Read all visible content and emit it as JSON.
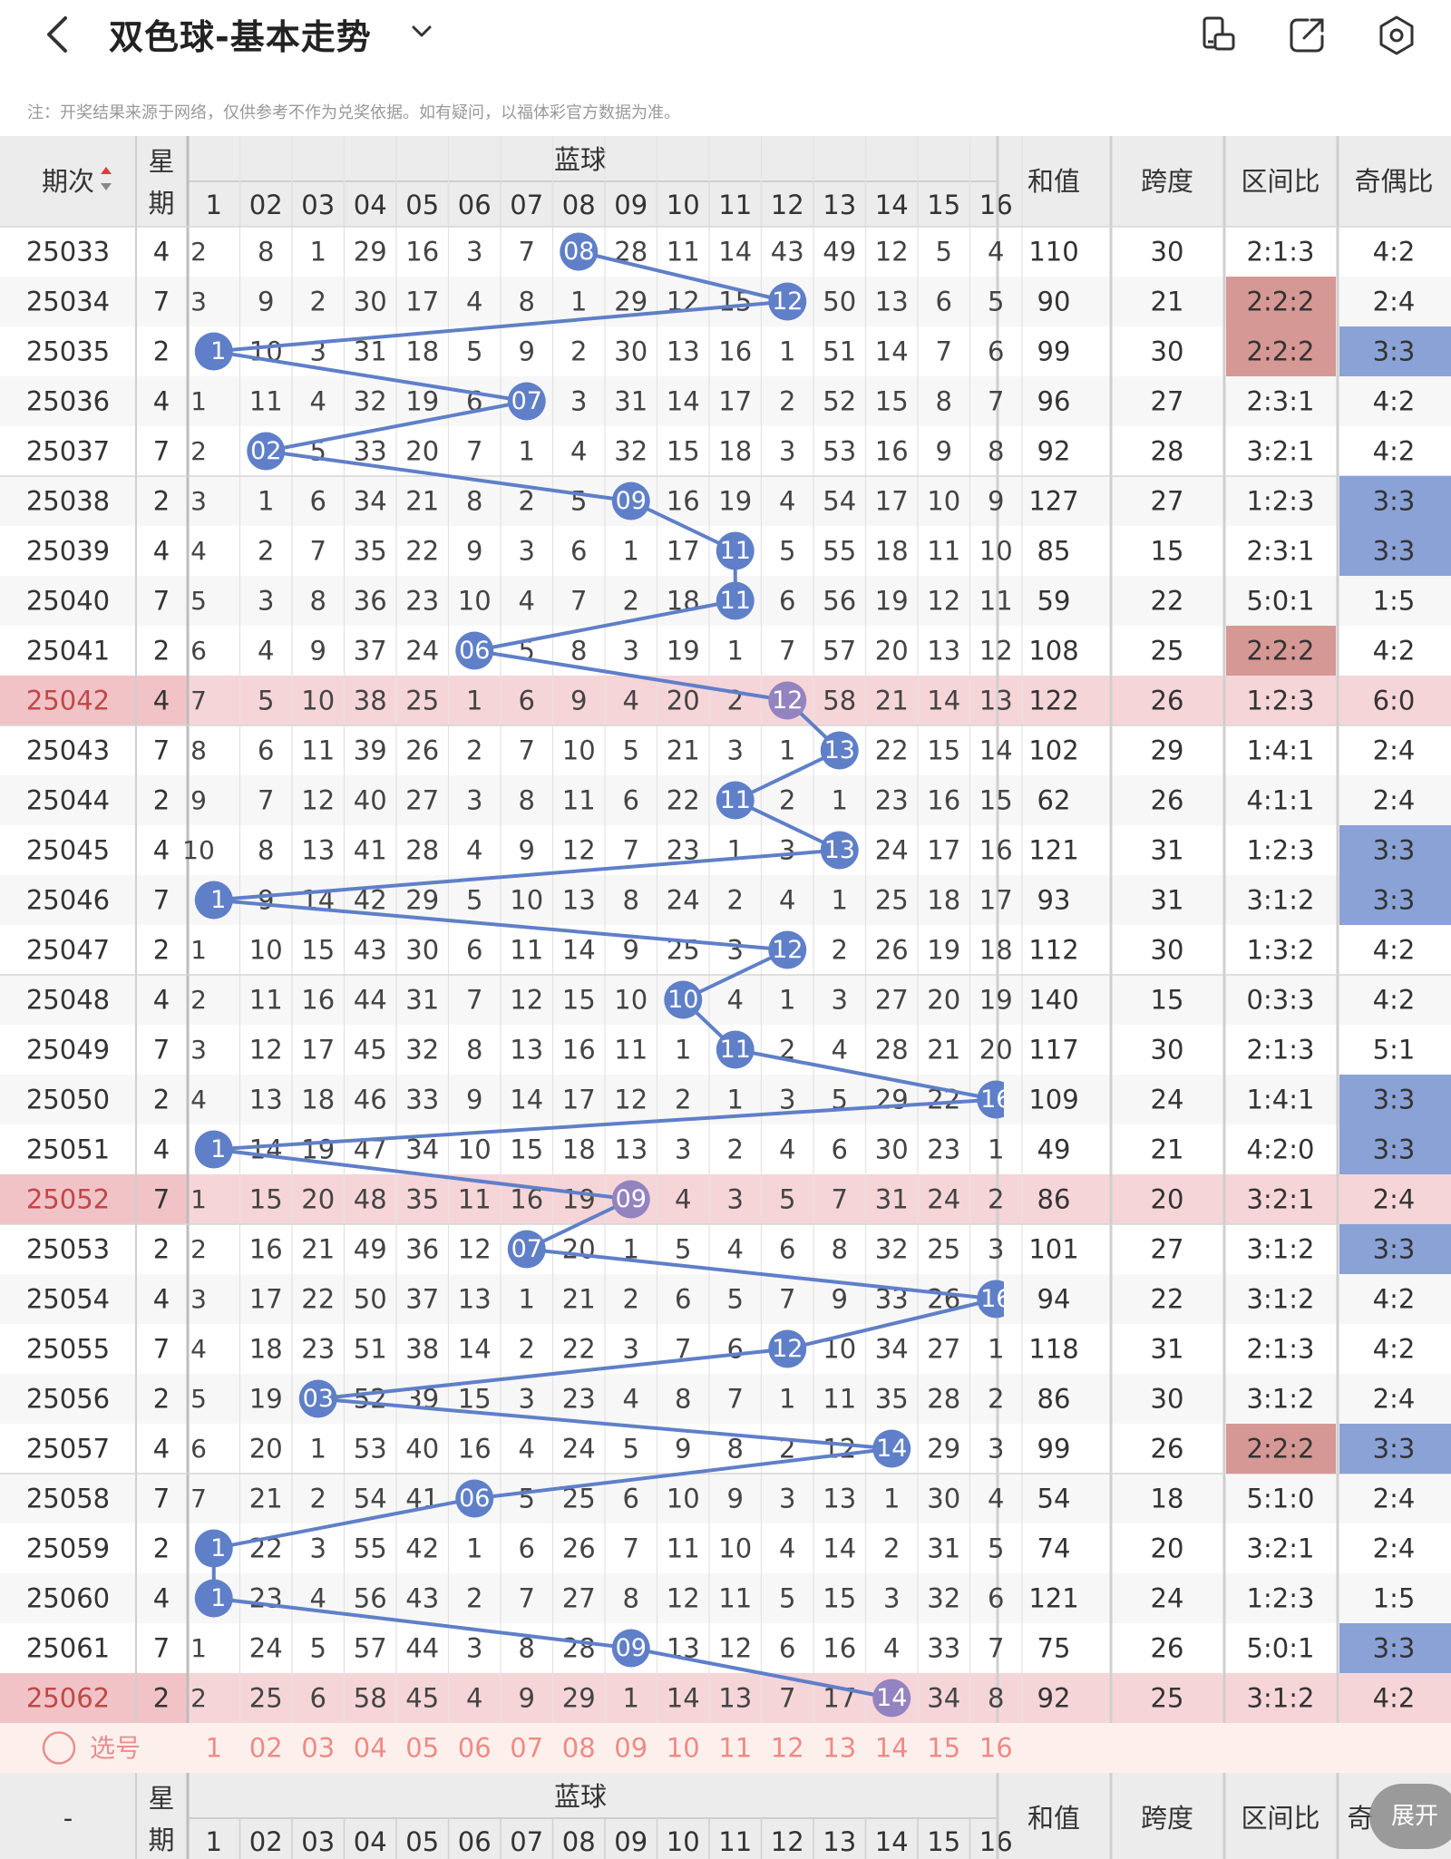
{
  "header": {
    "title": "双色球-基本走势",
    "icons": [
      "back-arrow-icon",
      "chevron-down-icon",
      "phone-rotate-icon",
      "share-icon",
      "settings-icon"
    ]
  },
  "notice": "注：开奖结果来源于网络，仅供参考不作为兑奖依据。如有疑问，以福体彩官方数据为准。",
  "table": {
    "col_period": "期次",
    "col_week": "星期",
    "col_blue": "蓝球",
    "col_sum": "和值",
    "col_span": "跨度",
    "col_zone": "区间比",
    "col_oddeven": "奇偶比",
    "ball_headers": [
      "1",
      "02",
      "03",
      "04",
      "05",
      "06",
      "07",
      "08",
      "09",
      "10",
      "11",
      "12",
      "13",
      "14",
      "15",
      "16"
    ],
    "rows": [
      {
        "p": "25033",
        "w": "4",
        "c0": "2",
        "b": 8,
        "miss": [
          "8",
          "1",
          "29",
          "16",
          "3",
          "7",
          "",
          "28",
          "11",
          "14",
          "43",
          "49",
          "12",
          "5",
          "4"
        ],
        "sum": "110",
        "span": "30",
        "zone": "2:1:3",
        "oe": "4:2",
        "zh": false,
        "oh": false,
        "hl": false
      },
      {
        "p": "25034",
        "w": "7",
        "c0": "3",
        "b": 12,
        "miss": [
          "9",
          "2",
          "30",
          "17",
          "4",
          "8",
          "1",
          "29",
          "12",
          "15",
          "",
          "50",
          "13",
          "6",
          "5"
        ],
        "sum": "90",
        "span": "21",
        "zone": "2:2:2",
        "oe": "2:4",
        "zh": true,
        "oh": false,
        "hl": false
      },
      {
        "p": "25035",
        "w": "2",
        "c0": "",
        "b": 1,
        "miss": [
          "10",
          "3",
          "31",
          "18",
          "5",
          "9",
          "2",
          "30",
          "13",
          "16",
          "1",
          "51",
          "14",
          "7",
          "6"
        ],
        "sum": "99",
        "span": "30",
        "zone": "2:2:2",
        "oe": "3:3",
        "zh": true,
        "oh": true,
        "hl": false
      },
      {
        "p": "25036",
        "w": "4",
        "c0": "1",
        "b": 7,
        "miss": [
          "11",
          "4",
          "32",
          "19",
          "6",
          "",
          "3",
          "31",
          "14",
          "17",
          "2",
          "52",
          "15",
          "8",
          "7"
        ],
        "sum": "96",
        "span": "27",
        "zone": "2:3:1",
        "oe": "4:2",
        "zh": false,
        "oh": false,
        "hl": false
      },
      {
        "p": "25037",
        "w": "7",
        "c0": "2",
        "b": 2,
        "miss": [
          "",
          "5",
          "33",
          "20",
          "7",
          "1",
          "4",
          "32",
          "15",
          "18",
          "3",
          "53",
          "16",
          "9",
          "8"
        ],
        "sum": "92",
        "span": "28",
        "zone": "3:2:1",
        "oe": "4:2",
        "zh": false,
        "oh": false,
        "hl": false
      },
      {
        "p": "25038",
        "w": "2",
        "c0": "3",
        "b": 9,
        "miss": [
          "1",
          "6",
          "34",
          "21",
          "8",
          "2",
          "5",
          "",
          "16",
          "19",
          "4",
          "54",
          "17",
          "10",
          "9"
        ],
        "sum": "127",
        "span": "27",
        "zone": "1:2:3",
        "oe": "3:3",
        "zh": false,
        "oh": true,
        "hl": false
      },
      {
        "p": "25039",
        "w": "4",
        "c0": "4",
        "b": 11,
        "miss": [
          "2",
          "7",
          "35",
          "22",
          "9",
          "3",
          "6",
          "1",
          "17",
          "",
          "5",
          "55",
          "18",
          "11",
          "10"
        ],
        "sum": "85",
        "span": "15",
        "zone": "2:3:1",
        "oe": "3:3",
        "zh": false,
        "oh": true,
        "hl": false
      },
      {
        "p": "25040",
        "w": "7",
        "c0": "5",
        "b": 11,
        "miss": [
          "3",
          "8",
          "36",
          "23",
          "10",
          "4",
          "7",
          "2",
          "18",
          "",
          "6",
          "56",
          "19",
          "12",
          "11"
        ],
        "sum": "59",
        "span": "22",
        "zone": "5:0:1",
        "oe": "1:5",
        "zh": false,
        "oh": false,
        "hl": false
      },
      {
        "p": "25041",
        "w": "2",
        "c0": "6",
        "b": 6,
        "miss": [
          "4",
          "9",
          "37",
          "24",
          "",
          "5",
          "8",
          "3",
          "19",
          "1",
          "7",
          "57",
          "20",
          "13",
          "12"
        ],
        "sum": "108",
        "span": "25",
        "zone": "2:2:2",
        "oe": "4:2",
        "zh": true,
        "oh": false,
        "hl": false
      },
      {
        "p": "25042",
        "w": "4",
        "c0": "7",
        "b": 12,
        "miss": [
          "5",
          "10",
          "38",
          "25",
          "1",
          "6",
          "9",
          "4",
          "20",
          "2",
          "",
          "58",
          "21",
          "14",
          "13"
        ],
        "sum": "122",
        "span": "26",
        "zone": "1:2:3",
        "oe": "6:0",
        "zh": false,
        "oh": false,
        "hl": true
      },
      {
        "p": "25043",
        "w": "7",
        "c0": "8",
        "b": 13,
        "miss": [
          "6",
          "11",
          "39",
          "26",
          "2",
          "7",
          "10",
          "5",
          "21",
          "3",
          "1",
          "",
          "22",
          "15",
          "14"
        ],
        "sum": "102",
        "span": "29",
        "zone": "1:4:1",
        "oe": "2:4",
        "zh": false,
        "oh": false,
        "hl": false
      },
      {
        "p": "25044",
        "w": "2",
        "c0": "9",
        "b": 11,
        "miss": [
          "7",
          "12",
          "40",
          "27",
          "3",
          "8",
          "11",
          "6",
          "22",
          "",
          "2",
          "1",
          "23",
          "16",
          "15"
        ],
        "sum": "62",
        "span": "26",
        "zone": "4:1:1",
        "oe": "2:4",
        "zh": false,
        "oh": false,
        "hl": false
      },
      {
        "p": "25045",
        "w": "4",
        "c0": "10",
        "b": 13,
        "miss": [
          "8",
          "13",
          "41",
          "28",
          "4",
          "9",
          "12",
          "7",
          "23",
          "1",
          "3",
          "",
          "24",
          "17",
          "16"
        ],
        "sum": "121",
        "span": "31",
        "zone": "1:2:3",
        "oe": "3:3",
        "zh": false,
        "oh": true,
        "hl": false
      },
      {
        "p": "25046",
        "w": "7",
        "c0": "",
        "b": 1,
        "miss": [
          "9",
          "14",
          "42",
          "29",
          "5",
          "10",
          "13",
          "8",
          "24",
          "2",
          "4",
          "1",
          "25",
          "18",
          "17"
        ],
        "sum": "93",
        "span": "31",
        "zone": "3:1:2",
        "oe": "3:3",
        "zh": false,
        "oh": true,
        "hl": false
      },
      {
        "p": "25047",
        "w": "2",
        "c0": "1",
        "b": 12,
        "miss": [
          "10",
          "15",
          "43",
          "30",
          "6",
          "11",
          "14",
          "9",
          "25",
          "3",
          "",
          "2",
          "26",
          "19",
          "18"
        ],
        "sum": "112",
        "span": "30",
        "zone": "1:3:2",
        "oe": "4:2",
        "zh": false,
        "oh": false,
        "hl": false
      },
      {
        "p": "25048",
        "w": "4",
        "c0": "2",
        "b": 10,
        "miss": [
          "11",
          "16",
          "44",
          "31",
          "7",
          "12",
          "15",
          "10",
          "",
          "4",
          "1",
          "3",
          "27",
          "20",
          "19"
        ],
        "sum": "140",
        "span": "15",
        "zone": "0:3:3",
        "oe": "4:2",
        "zh": false,
        "oh": false,
        "hl": false
      },
      {
        "p": "25049",
        "w": "7",
        "c0": "3",
        "b": 11,
        "miss": [
          "12",
          "17",
          "45",
          "32",
          "8",
          "13",
          "16",
          "11",
          "1",
          "",
          "2",
          "4",
          "28",
          "21",
          "20"
        ],
        "sum": "117",
        "span": "30",
        "zone": "2:1:3",
        "oe": "5:1",
        "zh": false,
        "oh": false,
        "hl": false
      },
      {
        "p": "25050",
        "w": "2",
        "c0": "4",
        "b": 16,
        "miss": [
          "13",
          "18",
          "46",
          "33",
          "9",
          "14",
          "17",
          "12",
          "2",
          "1",
          "3",
          "5",
          "29",
          "22",
          ""
        ],
        "sum": "109",
        "span": "24",
        "zone": "1:4:1",
        "oe": "3:3",
        "zh": false,
        "oh": true,
        "hl": false
      },
      {
        "p": "25051",
        "w": "4",
        "c0": "",
        "b": 1,
        "miss": [
          "14",
          "19",
          "47",
          "34",
          "10",
          "15",
          "18",
          "13",
          "3",
          "2",
          "4",
          "6",
          "30",
          "23",
          "1"
        ],
        "sum": "49",
        "span": "21",
        "zone": "4:2:0",
        "oe": "3:3",
        "zh": false,
        "oh": true,
        "hl": false
      },
      {
        "p": "25052",
        "w": "7",
        "c0": "1",
        "b": 9,
        "miss": [
          "15",
          "20",
          "48",
          "35",
          "11",
          "16",
          "19",
          "",
          "4",
          "3",
          "5",
          "7",
          "31",
          "24",
          "2"
        ],
        "sum": "86",
        "span": "20",
        "zone": "3:2:1",
        "oe": "2:4",
        "zh": false,
        "oh": false,
        "hl": true
      },
      {
        "p": "25053",
        "w": "2",
        "c0": "2",
        "b": 7,
        "miss": [
          "16",
          "21",
          "49",
          "36",
          "12",
          "",
          "20",
          "1",
          "5",
          "4",
          "6",
          "8",
          "32",
          "25",
          "3"
        ],
        "sum": "101",
        "span": "27",
        "zone": "3:1:2",
        "oe": "3:3",
        "zh": false,
        "oh": true,
        "hl": false
      },
      {
        "p": "25054",
        "w": "4",
        "c0": "3",
        "b": 16,
        "miss": [
          "17",
          "22",
          "50",
          "37",
          "13",
          "1",
          "21",
          "2",
          "6",
          "5",
          "7",
          "9",
          "33",
          "26",
          ""
        ],
        "sum": "94",
        "span": "22",
        "zone": "3:1:2",
        "oe": "4:2",
        "zh": false,
        "oh": false,
        "hl": false
      },
      {
        "p": "25055",
        "w": "7",
        "c0": "4",
        "b": 12,
        "miss": [
          "18",
          "23",
          "51",
          "38",
          "14",
          "2",
          "22",
          "3",
          "7",
          "6",
          "",
          "10",
          "34",
          "27",
          "1"
        ],
        "sum": "118",
        "span": "31",
        "zone": "2:1:3",
        "oe": "4:2",
        "zh": false,
        "oh": false,
        "hl": false
      },
      {
        "p": "25056",
        "w": "2",
        "c0": "5",
        "b": 3,
        "miss": [
          "19",
          "",
          "52",
          "39",
          "15",
          "3",
          "23",
          "4",
          "8",
          "7",
          "1",
          "11",
          "35",
          "28",
          "2"
        ],
        "sum": "86",
        "span": "30",
        "zone": "3:1:2",
        "oe": "2:4",
        "zh": false,
        "oh": false,
        "hl": false
      },
      {
        "p": "25057",
        "w": "4",
        "c0": "6",
        "b": 14,
        "miss": [
          "20",
          "1",
          "53",
          "40",
          "16",
          "4",
          "24",
          "5",
          "9",
          "8",
          "2",
          "12",
          "",
          "29",
          "3"
        ],
        "sum": "99",
        "span": "26",
        "zone": "2:2:2",
        "oe": "3:3",
        "zh": true,
        "oh": true,
        "hl": false
      },
      {
        "p": "25058",
        "w": "7",
        "c0": "7",
        "b": 6,
        "miss": [
          "21",
          "2",
          "54",
          "41",
          "",
          "5",
          "25",
          "6",
          "10",
          "9",
          "3",
          "13",
          "1",
          "30",
          "4"
        ],
        "sum": "54",
        "span": "18",
        "zone": "5:1:0",
        "oe": "2:4",
        "zh": false,
        "oh": false,
        "hl": false
      },
      {
        "p": "25059",
        "w": "2",
        "c0": "",
        "b": 1,
        "miss": [
          "22",
          "3",
          "55",
          "42",
          "1",
          "6",
          "26",
          "7",
          "11",
          "10",
          "4",
          "14",
          "2",
          "31",
          "5"
        ],
        "sum": "74",
        "span": "20",
        "zone": "3:2:1",
        "oe": "2:4",
        "zh": false,
        "oh": false,
        "hl": false
      },
      {
        "p": "25060",
        "w": "4",
        "c0": "",
        "b": 1,
        "miss": [
          "23",
          "4",
          "56",
          "43",
          "2",
          "7",
          "27",
          "8",
          "12",
          "11",
          "5",
          "15",
          "3",
          "32",
          "6"
        ],
        "sum": "121",
        "span": "24",
        "zone": "1:2:3",
        "oe": "1:5",
        "zh": false,
        "oh": false,
        "hl": false
      },
      {
        "p": "25061",
        "w": "7",
        "c0": "1",
        "b": 9,
        "miss": [
          "24",
          "5",
          "57",
          "44",
          "3",
          "8",
          "28",
          "",
          "13",
          "12",
          "6",
          "16",
          "4",
          "33",
          "7"
        ],
        "sum": "75",
        "span": "26",
        "zone": "5:0:1",
        "oe": "3:3",
        "zh": false,
        "oh": true,
        "hl": false
      },
      {
        "p": "25062",
        "w": "2",
        "c0": "2",
        "b": 14,
        "miss": [
          "25",
          "6",
          "58",
          "45",
          "4",
          "9",
          "29",
          "1",
          "14",
          "13",
          "7",
          "17",
          "",
          "34",
          "8"
        ],
        "sum": "92",
        "span": "25",
        "zone": "3:1:2",
        "oe": "4:2",
        "zh": false,
        "oh": false,
        "hl": true
      }
    ],
    "select_label": "选号",
    "select_balls": [
      "1",
      "02",
      "03",
      "04",
      "05",
      "06",
      "07",
      "08",
      "09",
      "10",
      "11",
      "12",
      "13",
      "14",
      "15",
      "16"
    ],
    "footer": {
      "period": "-",
      "week": "星期",
      "blue": "蓝球",
      "sum": "和值",
      "span": "跨度",
      "zone": "区间比",
      "oddeven": "奇"
    }
  },
  "expand_button": "展开",
  "colors": {
    "ball_blue": "#5f7fc8",
    "ball_highlight": "#9383c0",
    "row_highlight": "#f6d5d9",
    "cell_blue": "#8ba2d6",
    "cell_red": "#d69895",
    "header_bg": "#ececec"
  }
}
